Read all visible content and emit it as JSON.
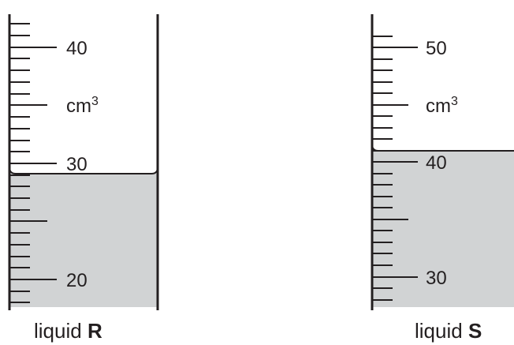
{
  "diagram": {
    "unit_label": {
      "base": "cm",
      "exponent": "3"
    },
    "cylinders": [
      {
        "id": "R",
        "caption_prefix": "liquid",
        "caption_letter": "R",
        "labels": [
          "40",
          "30",
          "20"
        ],
        "reading_cm3": 29
      },
      {
        "id": "S",
        "caption_prefix": "liquid",
        "caption_letter": "S",
        "labels": [
          "50",
          "40",
          "30"
        ],
        "reading_cm3": 41
      }
    ],
    "colors": {
      "ink": "#231f20",
      "liquid_fill": "#d1d3d4"
    }
  }
}
